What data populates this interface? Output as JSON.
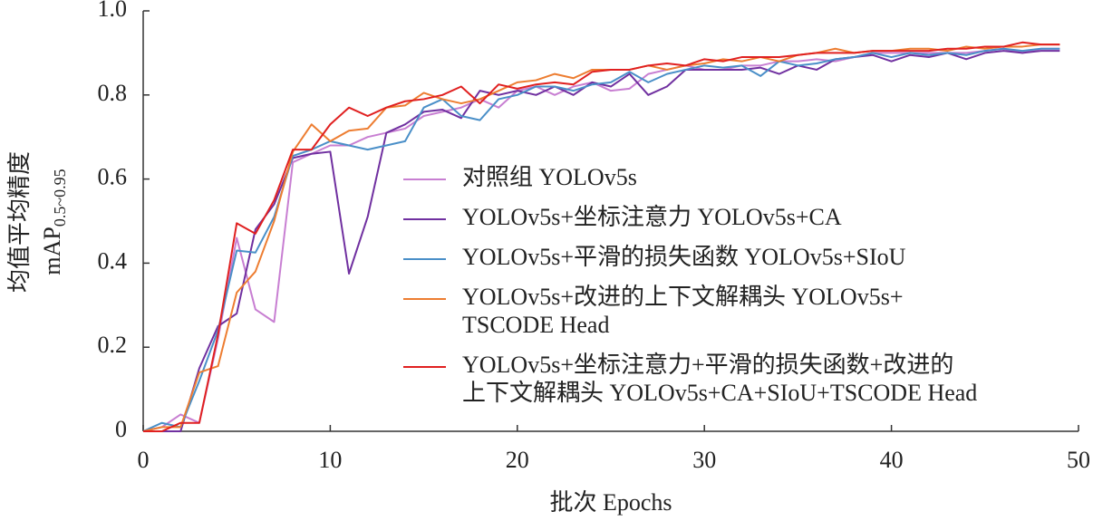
{
  "chart_data": {
    "type": "line",
    "x_label": "批次 Epochs",
    "y_label": "均值平均精度",
    "y_label_2": {
      "main": "mAP",
      "sub": "0.5~0.95"
    },
    "xlim": [
      0,
      50
    ],
    "xticks": [
      0,
      10,
      20,
      30,
      40,
      50
    ],
    "ylim": [
      0,
      1
    ],
    "yticks": [
      0,
      0.2,
      0.4,
      0.6,
      0.8,
      {
        "value": 1,
        "label": "1.0"
      }
    ],
    "x": [
      0,
      1,
      2,
      3,
      4,
      5,
      6,
      7,
      8,
      9,
      10,
      11,
      12,
      13,
      14,
      15,
      16,
      17,
      18,
      19,
      20,
      21,
      22,
      23,
      24,
      25,
      26,
      27,
      28,
      29,
      30,
      31,
      32,
      33,
      34,
      35,
      36,
      37,
      38,
      39,
      40,
      41,
      42,
      43,
      44,
      45,
      46,
      47,
      48,
      49
    ],
    "series": [
      {
        "name": [
          "对照组 YOLOv5s"
        ],
        "color": "#c87fd2",
        "values": [
          0,
          0.01,
          0.04,
          0.02,
          0.22,
          0.46,
          0.29,
          0.26,
          0.64,
          0.66,
          0.68,
          0.68,
          0.7,
          0.71,
          0.72,
          0.75,
          0.76,
          0.77,
          0.79,
          0.77,
          0.81,
          0.82,
          0.8,
          0.82,
          0.83,
          0.81,
          0.815,
          0.85,
          0.86,
          0.87,
          0.86,
          0.86,
          0.87,
          0.87,
          0.88,
          0.88,
          0.885,
          0.88,
          0.89,
          0.9,
          0.9,
          0.9,
          0.9,
          0.9,
          0.9,
          0.905,
          0.91,
          0.9,
          0.91,
          0.91
        ]
      },
      {
        "name": [
          "YOLOv5s+坐标注意力 YOLOv5s+CA"
        ],
        "color": "#7030a0",
        "values": [
          0,
          0,
          0,
          0.15,
          0.25,
          0.28,
          0.48,
          0.54,
          0.65,
          0.66,
          0.665,
          0.375,
          0.51,
          0.71,
          0.73,
          0.76,
          0.765,
          0.745,
          0.81,
          0.8,
          0.81,
          0.8,
          0.82,
          0.8,
          0.83,
          0.82,
          0.85,
          0.8,
          0.82,
          0.86,
          0.86,
          0.86,
          0.86,
          0.865,
          0.85,
          0.87,
          0.86,
          0.885,
          0.89,
          0.895,
          0.88,
          0.895,
          0.89,
          0.9,
          0.885,
          0.9,
          0.905,
          0.9,
          0.905,
          0.905
        ]
      },
      {
        "name": [
          "YOLOv5s+平滑的损失函数 YOLOv5s+SIoU"
        ],
        "color": "#4a8fc8",
        "values": [
          0,
          0.02,
          0.01,
          0.12,
          0.24,
          0.43,
          0.425,
          0.51,
          0.655,
          0.67,
          0.69,
          0.68,
          0.67,
          0.68,
          0.69,
          0.77,
          0.79,
          0.75,
          0.74,
          0.79,
          0.8,
          0.82,
          0.82,
          0.81,
          0.825,
          0.83,
          0.855,
          0.83,
          0.85,
          0.86,
          0.87,
          0.865,
          0.87,
          0.845,
          0.88,
          0.87,
          0.875,
          0.885,
          0.89,
          0.9,
          0.89,
          0.9,
          0.895,
          0.9,
          0.895,
          0.905,
          0.91,
          0.905,
          0.91,
          0.91
        ]
      },
      {
        "name": [
          "YOLOv5s+改进的上下文解耦头 YOLOv5s+",
          "TSCODE Head"
        ],
        "color": "#ed7d31",
        "values": [
          0,
          0.01,
          0.01,
          0.14,
          0.155,
          0.33,
          0.38,
          0.5,
          0.665,
          0.73,
          0.69,
          0.715,
          0.72,
          0.77,
          0.775,
          0.805,
          0.79,
          0.78,
          0.79,
          0.81,
          0.83,
          0.835,
          0.85,
          0.84,
          0.86,
          0.86,
          0.86,
          0.87,
          0.86,
          0.87,
          0.875,
          0.885,
          0.88,
          0.89,
          0.88,
          0.895,
          0.9,
          0.91,
          0.9,
          0.905,
          0.905,
          0.91,
          0.91,
          0.905,
          0.915,
          0.91,
          0.915,
          0.915,
          0.92,
          0.92
        ]
      },
      {
        "name": [
          "YOLOv5s+坐标注意力+平滑的损失函数+改进的",
          "上下文解耦头 YOLOv5s+CA+SIoU+TSCODE Head"
        ],
        "color": "#e02020",
        "values": [
          0,
          0,
          0.02,
          0.02,
          0.23,
          0.495,
          0.47,
          0.55,
          0.67,
          0.67,
          0.73,
          0.77,
          0.75,
          0.77,
          0.785,
          0.79,
          0.8,
          0.82,
          0.78,
          0.825,
          0.815,
          0.825,
          0.83,
          0.825,
          0.855,
          0.86,
          0.86,
          0.87,
          0.875,
          0.87,
          0.885,
          0.88,
          0.89,
          0.89,
          0.89,
          0.895,
          0.9,
          0.9,
          0.9,
          0.905,
          0.905,
          0.905,
          0.905,
          0.91,
          0.91,
          0.915,
          0.915,
          0.925,
          0.92,
          0.92
        ]
      }
    ]
  }
}
